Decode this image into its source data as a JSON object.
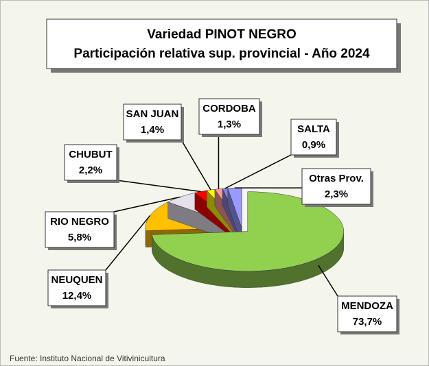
{
  "chart_data": {
    "type": "pie",
    "title": [
      "Variedad PINOT NEGRO",
      "Participación relativa sup. provincial - Año 2024"
    ],
    "categories": [
      "MENDOZA",
      "NEUQUEN",
      "RIO NEGRO",
      "CHUBUT",
      "SAN JUAN",
      "CORDOBA",
      "SALTA",
      "Otras Prov."
    ],
    "values": [
      73.7,
      12.4,
      5.8,
      2.2,
      1.4,
      1.3,
      0.9,
      2.3
    ],
    "value_labels": [
      "73,7%",
      "12,4%",
      "5,8%",
      "2,2%",
      "1,4%",
      "1,3%",
      "0,9%",
      "2,3%"
    ],
    "colors": [
      "#92d050",
      "#ffc000",
      "#e6e0ec",
      "#ff0000",
      "#ffff00",
      "#ff9999",
      "#8c7fd9",
      "#9999ff"
    ],
    "source": "Fuente: Instituto Nacional de Vitivinicultura"
  }
}
